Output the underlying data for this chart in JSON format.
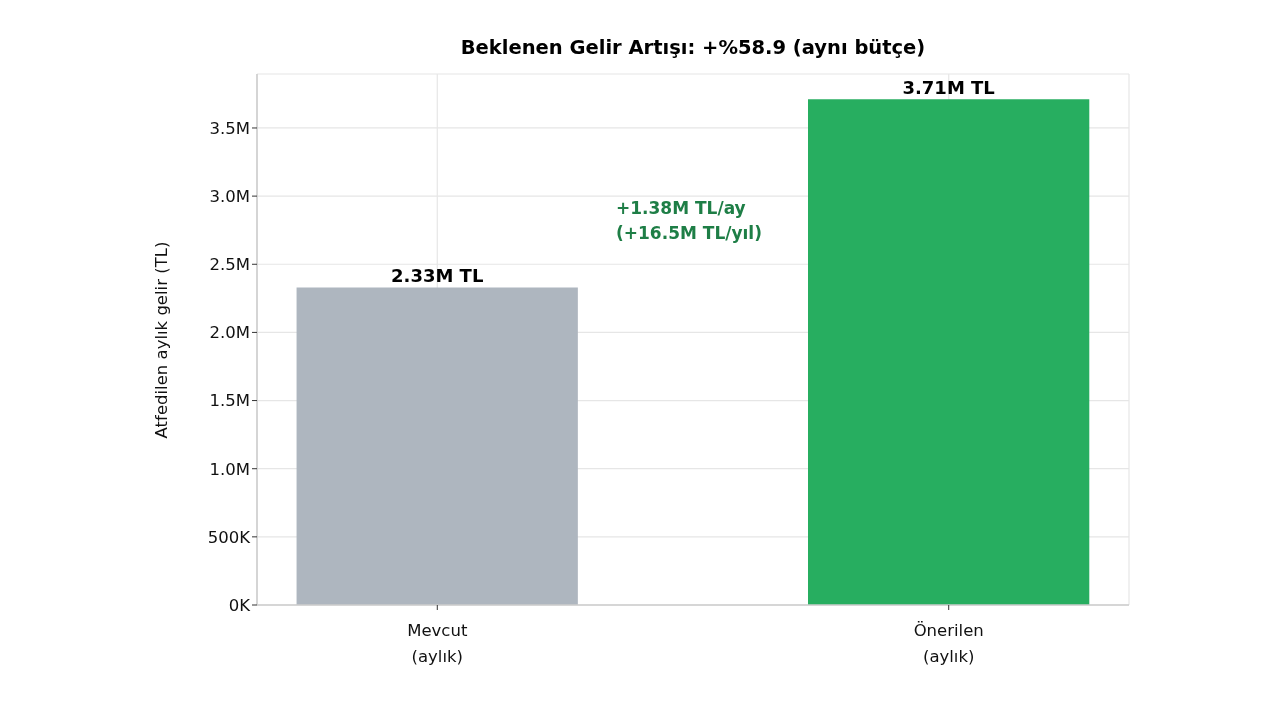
{
  "chart_data": {
    "type": "bar",
    "title": "Beklenen Gelir Artışı: +%58.9 (aynı bütçe)",
    "ylabel": "Atfedilen aylık gelir (TL)",
    "categories": [
      "Mevcut\n(aylık)",
      "Önerilen\n(aylık)"
    ],
    "values": [
      2330000,
      3710000
    ],
    "colors": [
      "#aeb6bf",
      "#27ae60"
    ],
    "value_labels": [
      "2.33M TL",
      "3.71M TL"
    ],
    "ylim": [
      0,
      3896000
    ],
    "yticks": [
      {
        "value": 0,
        "label": "0K"
      },
      {
        "value": 500000,
        "label": "500K"
      },
      {
        "value": 1000000,
        "label": "1.0M"
      },
      {
        "value": 1500000,
        "label": "1.5M"
      },
      {
        "value": 2000000,
        "label": "2.0M"
      },
      {
        "value": 2500000,
        "label": "2.5M"
      },
      {
        "value": 3000000,
        "label": "3.0M"
      },
      {
        "value": 3500000,
        "label": "3.5M"
      }
    ],
    "grid": true,
    "annotations": [
      "+1.38M TL/ay\n(+16.5M TL/yıl)"
    ]
  }
}
